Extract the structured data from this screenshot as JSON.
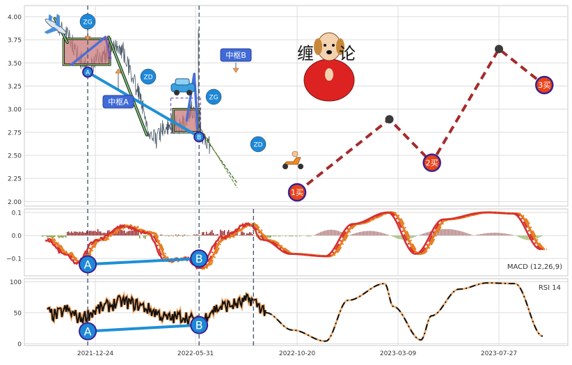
{
  "chart_data": [
    {
      "type": "line",
      "panel": "price",
      "ylim": [
        1.95,
        4.12
      ],
      "yticks": [
        "2.00",
        "2.25",
        "2.50",
        "2.75",
        "3.00",
        "3.25",
        "3.50",
        "3.75",
        "4.00"
      ],
      "ytick_values": [
        2.0,
        2.25,
        2.5,
        2.75,
        3.0,
        3.25,
        3.5,
        3.75,
        4.0
      ],
      "pivots": [
        {
          "label": "中枢A",
          "zg_label": "ZG",
          "zd_label": "ZD",
          "zg": 3.76,
          "zd": 3.48
        },
        {
          "label": "中枢B",
          "zg_label": "ZG",
          "zd_label": "ZD",
          "zg": 3.0,
          "zd": 2.75
        }
      ],
      "stroke_points": [
        {
          "label": "A",
          "x": "2021-12-12",
          "y": 3.4
        },
        {
          "label": "B",
          "x": "2022-06-05",
          "y": 2.7
        }
      ],
      "forecast_path": [
        {
          "x": "2022-10-20",
          "y": 2.1,
          "label": "1买"
        },
        {
          "x": "2023-02-25",
          "y": 2.89,
          "label": ""
        },
        {
          "x": "2023-04-25",
          "y": 2.42,
          "label": "2买"
        },
        {
          "x": "2023-07-27",
          "y": 3.65,
          "label": ""
        },
        {
          "x": "2023-09-28",
          "y": 3.26,
          "label": "3买"
        }
      ],
      "watermark_text": [
        "缠",
        "论"
      ],
      "grid": true
    },
    {
      "type": "bar",
      "panel": "macd",
      "label": "MACD (12,26,9)",
      "ylim": [
        -0.175,
        0.115
      ],
      "yticks": [
        "0.1",
        "0.0",
        "−0.1"
      ],
      "ytick_values": [
        0.1,
        0.0,
        -0.1
      ],
      "divergence_points": [
        {
          "label": "A",
          "x": "2021-12-12",
          "y": -0.125
        },
        {
          "label": "B",
          "x": "2022-06-05",
          "y": -0.1
        }
      ],
      "grid": true
    },
    {
      "type": "line",
      "panel": "rsi",
      "label": "RSI 14",
      "ylim": [
        -3,
        105
      ],
      "yticks": [
        "100",
        "50",
        "0"
      ],
      "ytick_values": [
        100,
        50,
        0
      ],
      "divergence_points": [
        {
          "label": "A",
          "x": "2021-12-12",
          "y": 20
        },
        {
          "label": "B",
          "x": "2022-06-05",
          "y": 30
        }
      ],
      "grid": true
    }
  ],
  "x_axis": {
    "ticks": [
      "2021-12-24",
      "2022-05-31",
      "2022-10-20",
      "2023-03-09",
      "2023-07-27"
    ],
    "tick_days": [
      0,
      158,
      300,
      440,
      580
    ],
    "start_date": "2021-10-01",
    "end_date": "2023-10-01"
  },
  "markers": {
    "vertical_lines": [
      "2021-12-12",
      "2022-06-05",
      "2022-08-20"
    ]
  },
  "colors": {
    "price_line": "#2c3e50",
    "stroke_blue": "#1f8fd6",
    "forecast": "#a52a2a",
    "macd_fast": "#e67e22",
    "macd_slow": "#d63031",
    "bar_up": "#8e1b1b",
    "bar_down": "#6b8e23",
    "pivot_fill": "#c97a7a",
    "pivot_border": "#2e8b57",
    "badge": "#1e88d8",
    "label_bg": "#3f6ad8"
  }
}
